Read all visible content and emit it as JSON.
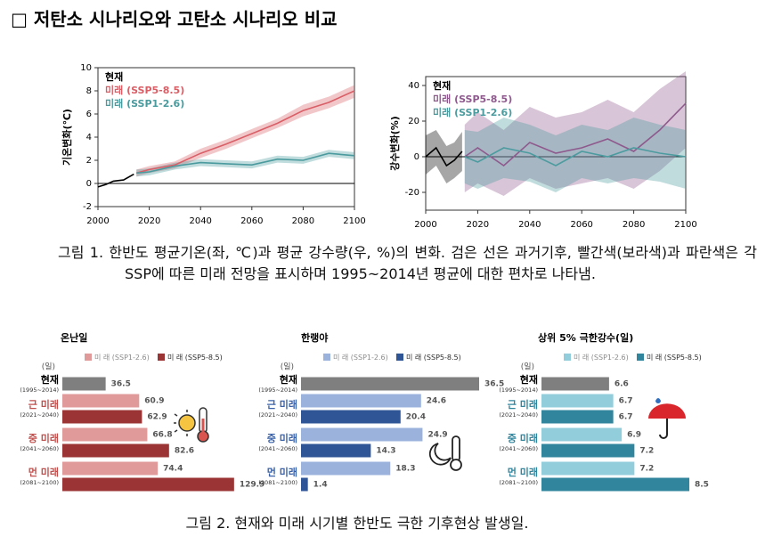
{
  "heading": "□ 저탄소 시나리오와 고탄소 시나리오 비교",
  "chart_data": [
    {
      "type": "line",
      "ylabel": "기온변화(℃)",
      "xlim": [
        2000,
        2100
      ],
      "ylim": [
        -2,
        10
      ],
      "xticks": [
        2000,
        2020,
        2040,
        2060,
        2080,
        2100
      ],
      "yticks": [
        -2,
        0,
        2,
        4,
        6,
        8,
        10
      ],
      "series": [
        {
          "name": "현재",
          "color": "#000000",
          "x": [
            2000,
            2003,
            2006,
            2010,
            2014
          ],
          "values": [
            -0.3,
            -0.1,
            0.2,
            0.3,
            0.8
          ]
        },
        {
          "name": "미래 (SSP5-8.5)",
          "color": "#d95f67",
          "x": [
            2015,
            2020,
            2030,
            2040,
            2050,
            2060,
            2070,
            2080,
            2090,
            2100
          ],
          "values": [
            0.9,
            1.2,
            1.6,
            2.6,
            3.4,
            4.3,
            5.2,
            6.3,
            7.0,
            8.0
          ],
          "lower": [
            0.6,
            0.9,
            1.3,
            2.2,
            3.0,
            3.9,
            4.8,
            5.8,
            6.5,
            7.4
          ],
          "upper": [
            1.2,
            1.5,
            1.9,
            3.0,
            3.8,
            4.7,
            5.6,
            6.8,
            7.5,
            8.5
          ]
        },
        {
          "name": "미래 (SSP1-2.6)",
          "color": "#4a9a9e",
          "x": [
            2015,
            2020,
            2030,
            2040,
            2050,
            2060,
            2070,
            2080,
            2090,
            2100
          ],
          "values": [
            0.9,
            1.0,
            1.5,
            1.8,
            1.7,
            1.6,
            2.1,
            2.0,
            2.6,
            2.4
          ],
          "lower": [
            0.6,
            0.7,
            1.2,
            1.5,
            1.4,
            1.3,
            1.8,
            1.7,
            2.3,
            2.1
          ],
          "upper": [
            1.2,
            1.3,
            1.8,
            2.1,
            2.0,
            1.9,
            2.4,
            2.3,
            2.9,
            2.7
          ]
        }
      ]
    },
    {
      "type": "line",
      "ylabel": "강수변화(%)",
      "xlim": [
        2000,
        2100
      ],
      "ylim": [
        -30,
        45
      ],
      "xticks": [
        2000,
        2020,
        2040,
        2060,
        2080,
        2100
      ],
      "yticks": [
        -20,
        0,
        20,
        40
      ],
      "series": [
        {
          "name": "현재",
          "color": "#000000",
          "x": [
            2000,
            2004,
            2008,
            2011,
            2014
          ],
          "values": [
            0,
            5,
            -5,
            -2,
            3
          ],
          "lower": [
            -10,
            -5,
            -15,
            -12,
            -8
          ],
          "upper": [
            12,
            15,
            6,
            8,
            14
          ]
        },
        {
          "name": "미래 (SSP5-8.5)",
          "color": "#8e5a8d",
          "x": [
            2015,
            2020,
            2030,
            2040,
            2050,
            2060,
            2070,
            2080,
            2090,
            2100
          ],
          "values": [
            0,
            5,
            -5,
            8,
            2,
            5,
            10,
            3,
            15,
            30
          ],
          "lower": [
            -20,
            -15,
            -22,
            -12,
            -18,
            -15,
            -12,
            -18,
            -8,
            5
          ],
          "upper": [
            18,
            25,
            15,
            28,
            22,
            25,
            32,
            25,
            38,
            48
          ]
        },
        {
          "name": "미래 (SSP1-2.6)",
          "color": "#4c9c9f",
          "x": [
            2015,
            2020,
            2030,
            2040,
            2050,
            2060,
            2070,
            2080,
            2090,
            2100
          ],
          "values": [
            0,
            -3,
            5,
            2,
            -5,
            3,
            0,
            5,
            2,
            0
          ],
          "lower": [
            -15,
            -18,
            -12,
            -14,
            -20,
            -12,
            -15,
            -12,
            -14,
            -18
          ],
          "upper": [
            15,
            14,
            22,
            18,
            12,
            18,
            15,
            22,
            18,
            15
          ]
        }
      ]
    },
    {
      "type": "hbar",
      "title": "온난일",
      "unit": "(일)",
      "xlim": [
        5,
        130
      ],
      "label_color": "#c0504d",
      "categories": [
        "현재",
        "근 미래",
        "중 미래",
        "먼 미래"
      ],
      "periods": [
        "(1995~2014)",
        "(2021~2040)",
        "(2041~2060)",
        "(2081~2100)"
      ],
      "baseline": {
        "value": 36.5,
        "color": "#7f7f7f"
      },
      "series": [
        {
          "name": "미 래 (SSP1-2.6)",
          "color": "#e09a9a",
          "values": [
            null,
            60.9,
            66.8,
            74.4
          ]
        },
        {
          "name": "미 래 (SSP5-8.5)",
          "color": "#9b3535",
          "values": [
            null,
            62.9,
            82.6,
            129.9
          ]
        }
      ]
    },
    {
      "type": "hbar",
      "title": "한랭야",
      "unit": "(일)",
      "xlim": [
        0,
        36.5
      ],
      "label_color": "#3a62a8",
      "categories": [
        "현재",
        "근 미래",
        "중 미래",
        "먼 미래"
      ],
      "periods": [
        "(1995~2014)",
        "(2021~2040)",
        "(2041~2060)",
        "(2081~2100)"
      ],
      "baseline": {
        "value": 36.5,
        "color": "#7f7f7f"
      },
      "series": [
        {
          "name": "미 래 (SSP1-2.6)",
          "color": "#9bb3dc",
          "values": [
            null,
            24.6,
            24.9,
            18.3
          ]
        },
        {
          "name": "미 래 (SSP5-8.5)",
          "color": "#2f5597",
          "values": [
            null,
            20.4,
            14.3,
            1.4
          ]
        }
      ]
    },
    {
      "type": "hbar",
      "title": "상위 5% 극한강수(일)",
      "unit": "(일)",
      "xlim": [
        5,
        8.5
      ],
      "label_color": "#31859c",
      "categories": [
        "현재",
        "근 미래",
        "중 미래",
        "먼 미래"
      ],
      "periods": [
        "(1995~2014)",
        "(2021~2040)",
        "(2041~2060)",
        "(2081~2100)"
      ],
      "baseline": {
        "value": 6.6,
        "color": "#7f7f7f"
      },
      "series": [
        {
          "name": "미 래 (SSP1-2.6)",
          "color": "#92cddc",
          "values": [
            null,
            6.7,
            6.9,
            7.2
          ]
        },
        {
          "name": "미 래 (SSP5-8.5)",
          "color": "#31859c",
          "values": [
            null,
            6.7,
            7.2,
            8.5
          ]
        }
      ]
    }
  ],
  "captions": [
    "그림 1. 한반도 평균기온(좌, ℃)과 평균 강수량(우, %)의 변화. 검은 선은 과거기후, 빨간색(보라색)과 파란색은 각 SSP에 따른 미래 전망을 표시하며 1995~2014년 평균에 대한 편차로 나타냄.",
    "그림 2. 현재와 미래 시기별 한반도 극한 기후현상 발생일."
  ]
}
